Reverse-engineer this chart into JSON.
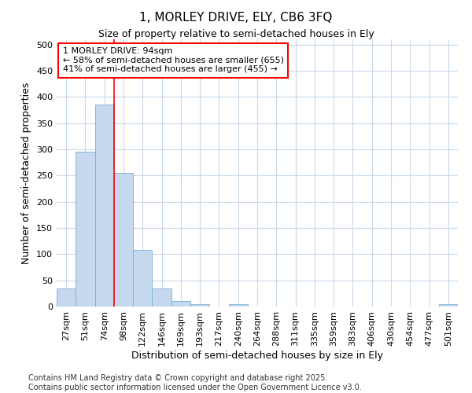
{
  "title_line1": "1, MORLEY DRIVE, ELY, CB6 3FQ",
  "title_line2": "Size of property relative to semi-detached houses in Ely",
  "xlabel": "Distribution of semi-detached houses by size in Ely",
  "ylabel": "Number of semi-detached properties",
  "footer_line1": "Contains HM Land Registry data © Crown copyright and database right 2025.",
  "footer_line2": "Contains public sector information licensed under the Open Government Licence v3.0.",
  "categories": [
    "27sqm",
    "51sqm",
    "74sqm",
    "98sqm",
    "122sqm",
    "146sqm",
    "169sqm",
    "193sqm",
    "217sqm",
    "240sqm",
    "264sqm",
    "288sqm",
    "311sqm",
    "335sqm",
    "359sqm",
    "383sqm",
    "406sqm",
    "430sqm",
    "454sqm",
    "477sqm",
    "501sqm"
  ],
  "values": [
    35,
    295,
    385,
    255,
    108,
    35,
    10,
    5,
    0,
    4,
    0,
    0,
    0,
    0,
    0,
    0,
    0,
    0,
    0,
    0,
    4
  ],
  "bar_color": "#c5d8ee",
  "bar_edge_color": "#7aadd4",
  "red_line_x": 2.5,
  "annotation_line1": "1 MORLEY DRIVE: 94sqm",
  "annotation_line2": "← 58% of semi-detached houses are smaller (655)",
  "annotation_line3": "41% of semi-detached houses are larger (455) →",
  "ylim": [
    0,
    510
  ],
  "yticks": [
    0,
    50,
    100,
    150,
    200,
    250,
    300,
    350,
    400,
    450,
    500
  ],
  "background_color": "#ffffff",
  "plot_bg_color": "#ffffff",
  "grid_color": "#c8d8e8",
  "title_fontsize": 11,
  "subtitle_fontsize": 9,
  "tick_fontsize": 8,
  "axis_label_fontsize": 9,
  "footer_fontsize": 7
}
